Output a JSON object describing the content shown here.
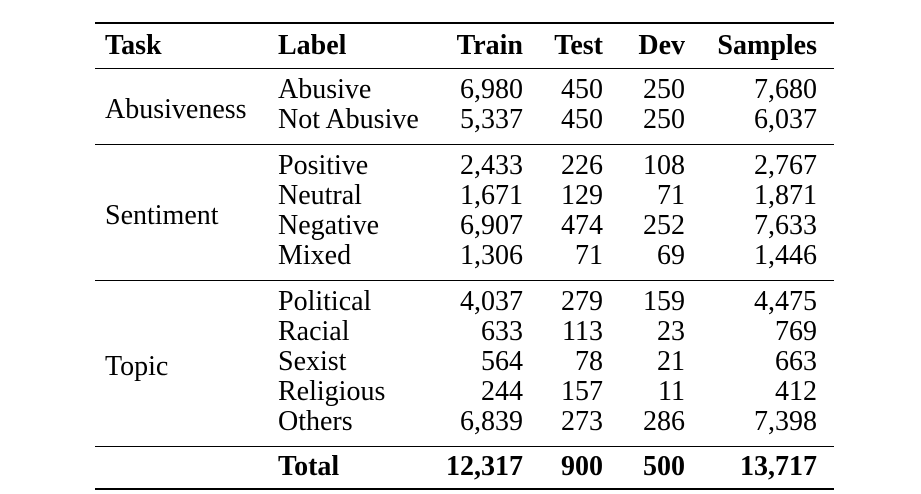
{
  "table": {
    "headers": {
      "task": "Task",
      "label": "Label",
      "train": "Train",
      "test": "Test",
      "dev": "Dev",
      "samples": "Samples"
    },
    "sections": [
      {
        "task": "Abusiveness",
        "rows": [
          {
            "label": "Abusive",
            "train": "6,980",
            "test": "450",
            "dev": "250",
            "samples": "7,680"
          },
          {
            "label": "Not Abusive",
            "train": "5,337",
            "test": "450",
            "dev": "250",
            "samples": "6,037"
          }
        ]
      },
      {
        "task": "Sentiment",
        "rows": [
          {
            "label": "Positive",
            "train": "2,433",
            "test": "226",
            "dev": "108",
            "samples": "2,767"
          },
          {
            "label": "Neutral",
            "train": "1,671",
            "test": "129",
            "dev": "71",
            "samples": "1,871"
          },
          {
            "label": "Negative",
            "train": "6,907",
            "test": "474",
            "dev": "252",
            "samples": "7,633"
          },
          {
            "label": "Mixed",
            "train": "1,306",
            "test": "71",
            "dev": "69",
            "samples": "1,446"
          }
        ]
      },
      {
        "task": "Topic",
        "rows": [
          {
            "label": "Political",
            "train": "4,037",
            "test": "279",
            "dev": "159",
            "samples": "4,475"
          },
          {
            "label": "Racial",
            "train": "633",
            "test": "113",
            "dev": "23",
            "samples": "769"
          },
          {
            "label": "Sexist",
            "train": "564",
            "test": "78",
            "dev": "21",
            "samples": "663"
          },
          {
            "label": "Religious",
            "train": "244",
            "test": "157",
            "dev": "11",
            "samples": "412"
          },
          {
            "label": "Others",
            "train": "6,839",
            "test": "273",
            "dev": "286",
            "samples": "7,398"
          }
        ]
      }
    ],
    "total": {
      "label": "Total",
      "train": "12,317",
      "test": "900",
      "dev": "500",
      "samples": "13,717"
    },
    "colors": {
      "background": "#ffffff",
      "text": "#000000",
      "rule": "#000000"
    }
  }
}
